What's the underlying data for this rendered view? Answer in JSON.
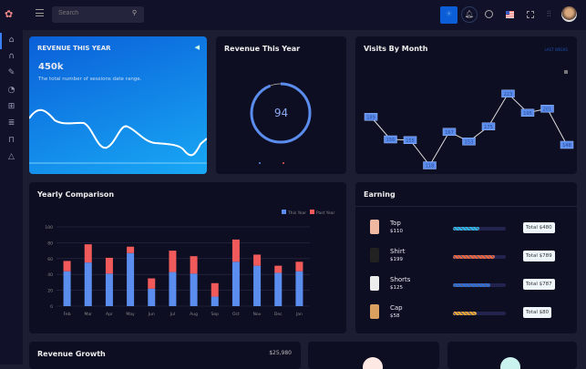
{
  "topbar": {
    "search_placeholder": "Search"
  },
  "card_revenue": {
    "title": "REVENUE THIS YEAR",
    "value": "450k",
    "description": "The total number of sessions date range."
  },
  "card_donut": {
    "title": "Revenue This Year",
    "value": "94",
    "percent": 94,
    "colors": [
      "#5b8def",
      "#e85b5b"
    ]
  },
  "card_visits": {
    "title": "Visits By Month",
    "filter": "LAST WEEKS",
    "labels": [
      "189",
      "156",
      "155",
      "118",
      "167",
      "153",
      "175",
      "223",
      "195",
      "201",
      "148"
    ]
  },
  "yearly": {
    "title": "Yearly Comparison",
    "chart_data": {
      "type": "bar",
      "stacked": true,
      "categories": [
        "Feb",
        "Mar",
        "Apr",
        "May",
        "Jun",
        "Jul",
        "Aug",
        "Sep",
        "Oct",
        "Nov",
        "Dec",
        "Jan"
      ],
      "series": [
        {
          "name": "This Year",
          "color": "#5b8def",
          "values": [
            44,
            55,
            41,
            67,
            22,
            43,
            41,
            12,
            56,
            51,
            42,
            44
          ]
        },
        {
          "name": "Past Year",
          "color": "#f05a5a",
          "values": [
            13,
            23,
            20,
            8,
            13,
            27,
            22,
            17,
            28,
            14,
            9,
            12
          ]
        }
      ],
      "yticks": [
        "0",
        "20",
        "40",
        "60",
        "80",
        "100"
      ],
      "ylim": [
        0,
        100
      ],
      "grid": true,
      "legend": "top-right"
    }
  },
  "earning": {
    "title": "Earning",
    "items": [
      {
        "name": "Top",
        "price": "$110",
        "total": "Total $480",
        "progress": 50,
        "color": "#29b6e8"
      },
      {
        "name": "Shirt",
        "price": "$199",
        "total": "Total $789",
        "progress": 80,
        "color": "#f0643c"
      },
      {
        "name": "Shorts",
        "price": "$125",
        "total": "Total $787",
        "progress": 70,
        "color": "#2f6fd8"
      },
      {
        "name": "Cap",
        "price": "$58",
        "total": "Total $80",
        "progress": 45,
        "color": "#f0a830"
      }
    ]
  },
  "revenue_growth": {
    "title": "Revenue Growth",
    "value": "$25,980"
  }
}
